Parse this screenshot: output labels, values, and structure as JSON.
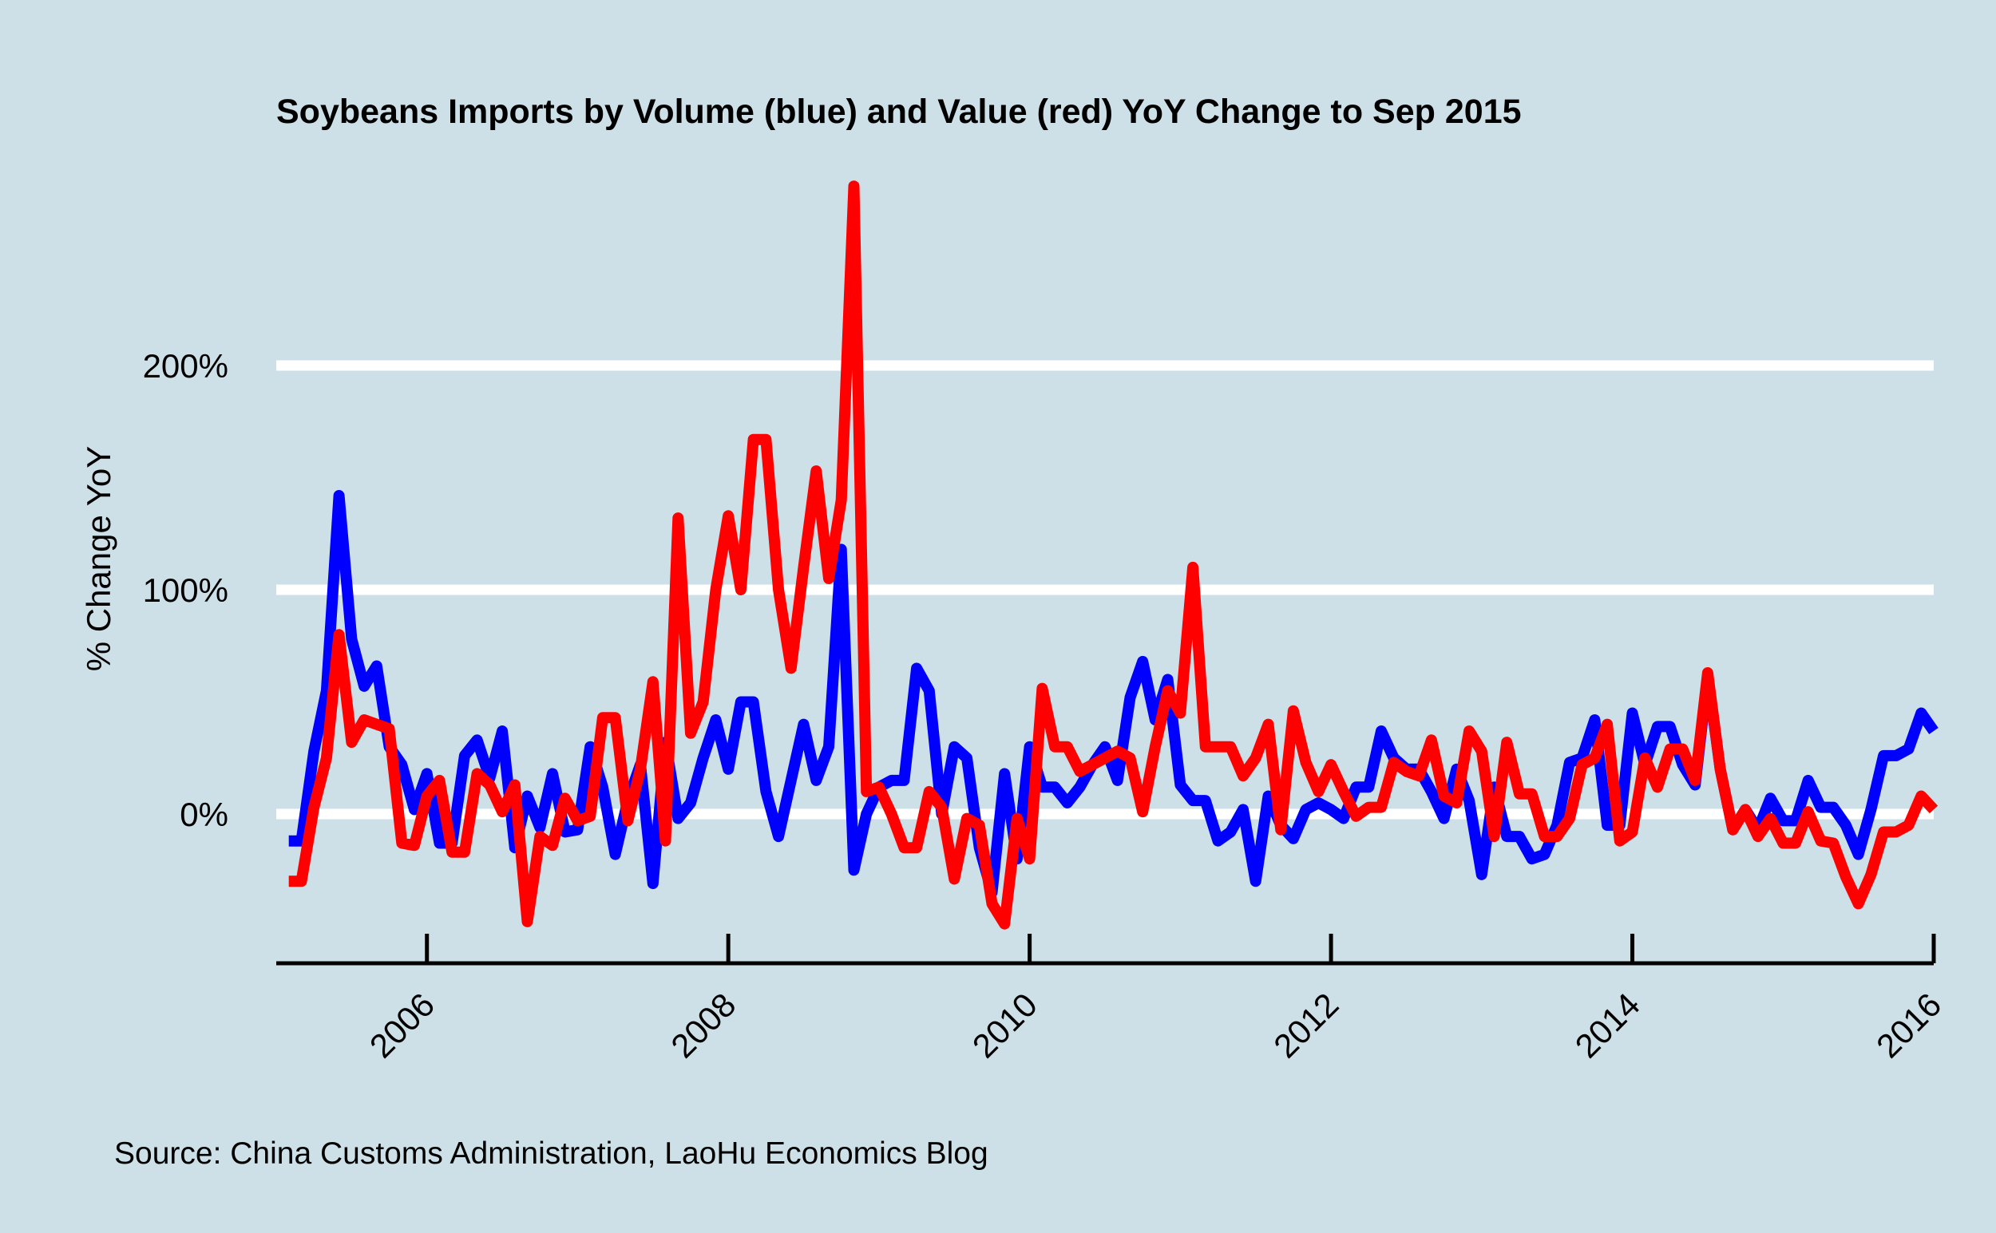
{
  "chart_data": {
    "type": "line",
    "title": "Soybeans Imports by Volume (blue) and Value (red) YoY Change to Sep 2015",
    "ylabel": "% Change YoY",
    "xlabel": "",
    "caption": "Source: China Customs Administration, LaoHu Economics Blog",
    "x_start": "2005-01",
    "x_step": "1 month",
    "xlim": [
      2005.0,
      2016.0
    ],
    "ylim": [
      -67,
      290
    ],
    "x_ticks": [
      {
        "value": 2006,
        "label": "2006"
      },
      {
        "value": 2008,
        "label": "2008"
      },
      {
        "value": 2010,
        "label": "2010"
      },
      {
        "value": 2012,
        "label": "2012"
      },
      {
        "value": 2014,
        "label": "2014"
      },
      {
        "value": 2016,
        "label": "2016"
      }
    ],
    "y_ticks": [
      {
        "value": 0,
        "label": "0%"
      },
      {
        "value": 100,
        "label": "100%"
      },
      {
        "value": 200,
        "label": "200%"
      }
    ],
    "grid": "horizontal",
    "series": [
      {
        "key": "volume",
        "color": "#0000ff",
        "values": [
          -12,
          -12,
          28,
          55,
          142,
          78,
          57,
          66,
          30,
          22,
          2,
          18,
          -13,
          -13,
          26,
          33,
          16,
          37,
          -15,
          8,
          -6,
          18,
          -8,
          -7,
          30,
          12,
          -18,
          6,
          22,
          -31,
          32,
          -2,
          5,
          25,
          42,
          20,
          50,
          50,
          10,
          -10,
          15,
          40,
          15,
          30,
          118,
          -25,
          0,
          12,
          15,
          15,
          65,
          55,
          0,
          30,
          25,
          -15,
          -35,
          18,
          -20,
          30,
          12,
          12,
          5,
          12,
          22,
          30,
          15,
          52,
          68,
          42,
          60,
          13,
          6,
          6,
          -12,
          -8,
          2,
          -30,
          8,
          -5,
          -11,
          2,
          5,
          2,
          -2,
          12,
          12,
          37,
          25,
          20,
          20,
          10,
          -2,
          20,
          6,
          -27,
          12,
          -10,
          -10,
          -20,
          -18,
          -5,
          23,
          25,
          42,
          -5,
          -5,
          45,
          22,
          39,
          39,
          22,
          13,
          62,
          20,
          -7,
          2,
          -7,
          7,
          -3,
          -3,
          15,
          3,
          3,
          -5,
          -18,
          2,
          26,
          26,
          29,
          45,
          37
        ]
      },
      {
        "key": "value",
        "color": "#ff0000",
        "values": [
          -30,
          -30,
          3,
          25,
          80,
          32,
          42,
          40,
          38,
          -13,
          -14,
          8,
          15,
          -17,
          -17,
          18,
          13,
          1,
          13,
          -48,
          -10,
          -14,
          7,
          -3,
          -1,
          43,
          43,
          -3,
          20,
          59,
          -12,
          132,
          36,
          50,
          100,
          133,
          100,
          167,
          167,
          100,
          65,
          110,
          153,
          105,
          140,
          280,
          10,
          12,
          0,
          -15,
          -15,
          10,
          3,
          -29,
          -2,
          -5,
          -40,
          -49,
          -2,
          -20,
          56,
          30,
          30,
          19,
          22,
          25,
          28,
          25,
          1,
          30,
          55,
          45,
          110,
          30,
          30,
          30,
          17,
          25,
          40,
          -7,
          46,
          23,
          10,
          22,
          10,
          -1,
          3,
          3,
          23,
          19,
          17,
          33,
          8,
          5,
          37,
          28,
          -10,
          32,
          9,
          9,
          -10,
          -10,
          -2,
          22,
          25,
          40,
          -12,
          -8,
          25,
          12,
          29,
          29,
          15,
          63,
          20,
          -7,
          2,
          -10,
          -2,
          -13,
          -13,
          1,
          -12,
          -13,
          -28,
          -40,
          -27,
          -8,
          -8,
          -5,
          8,
          2
        ]
      }
    ]
  }
}
